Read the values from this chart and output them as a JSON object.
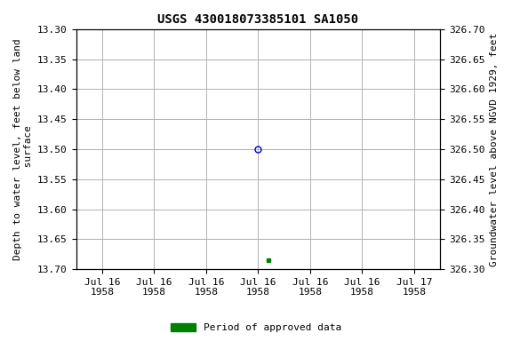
{
  "title": "USGS 430018073385101 SA1050",
  "ylabel_left": "Depth to water level, feet below land\n surface",
  "ylabel_right": "Groundwater level above NGVD 1929, feet",
  "ylim_left": [
    13.7,
    13.3
  ],
  "ylim_right": [
    326.3,
    326.7
  ],
  "yticks_left": [
    13.3,
    13.35,
    13.4,
    13.45,
    13.5,
    13.55,
    13.6,
    13.65,
    13.7
  ],
  "yticks_right": [
    326.7,
    326.65,
    326.6,
    326.55,
    326.5,
    326.45,
    326.4,
    326.35,
    326.3
  ],
  "xtick_labels": [
    "Jul 16\n1958",
    "Jul 16\n1958",
    "Jul 16\n1958",
    "Jul 16\n1958",
    "Jul 16\n1958",
    "Jul 16\n1958",
    "Jul 17\n1958"
  ],
  "x_start_num": 0,
  "x_end_num": 6,
  "xtick_positions": [
    0,
    1,
    2,
    3,
    4,
    5,
    6
  ],
  "data_points": [
    {
      "x": 3,
      "value": 13.5,
      "marker": "o",
      "color": "#0000cc",
      "filled": false,
      "markersize": 5
    },
    {
      "x": 3.2,
      "value": 13.685,
      "marker": "s",
      "color": "#008000",
      "filled": true,
      "markersize": 3
    }
  ],
  "legend_label": "Period of approved data",
  "legend_color": "#008000",
  "background_color": "#ffffff",
  "grid_color": "#b0b0b0",
  "title_fontsize": 10,
  "label_fontsize": 8,
  "tick_fontsize": 8
}
